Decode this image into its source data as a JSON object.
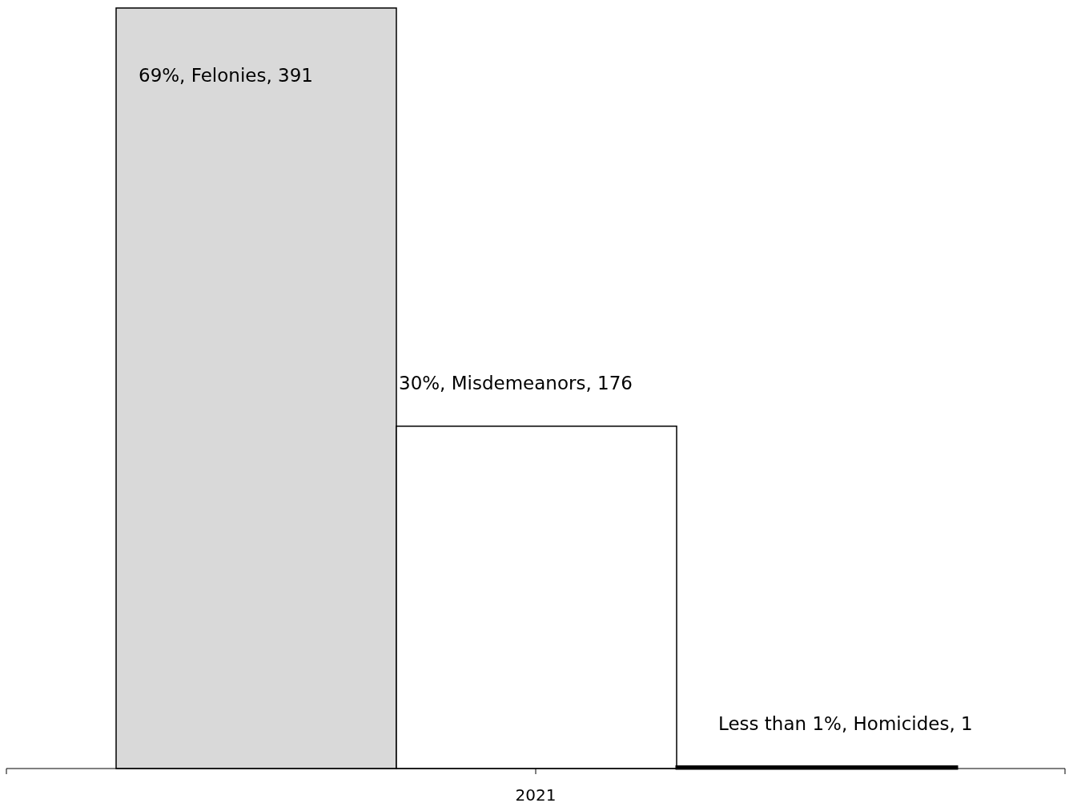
{
  "chart_data": {
    "type": "bar",
    "categories": [
      null,
      null,
      null
    ],
    "xlabel": "2021",
    "values": [
      391,
      176,
      1
    ],
    "colors": [
      "#d9d9d9",
      "#ffffff",
      "#000000"
    ],
    "value_labels": [
      "69%, Felonies, 391",
      "30%, Misdemeanors, 176",
      "Less than 1%, Homicides, 1"
    ]
  }
}
